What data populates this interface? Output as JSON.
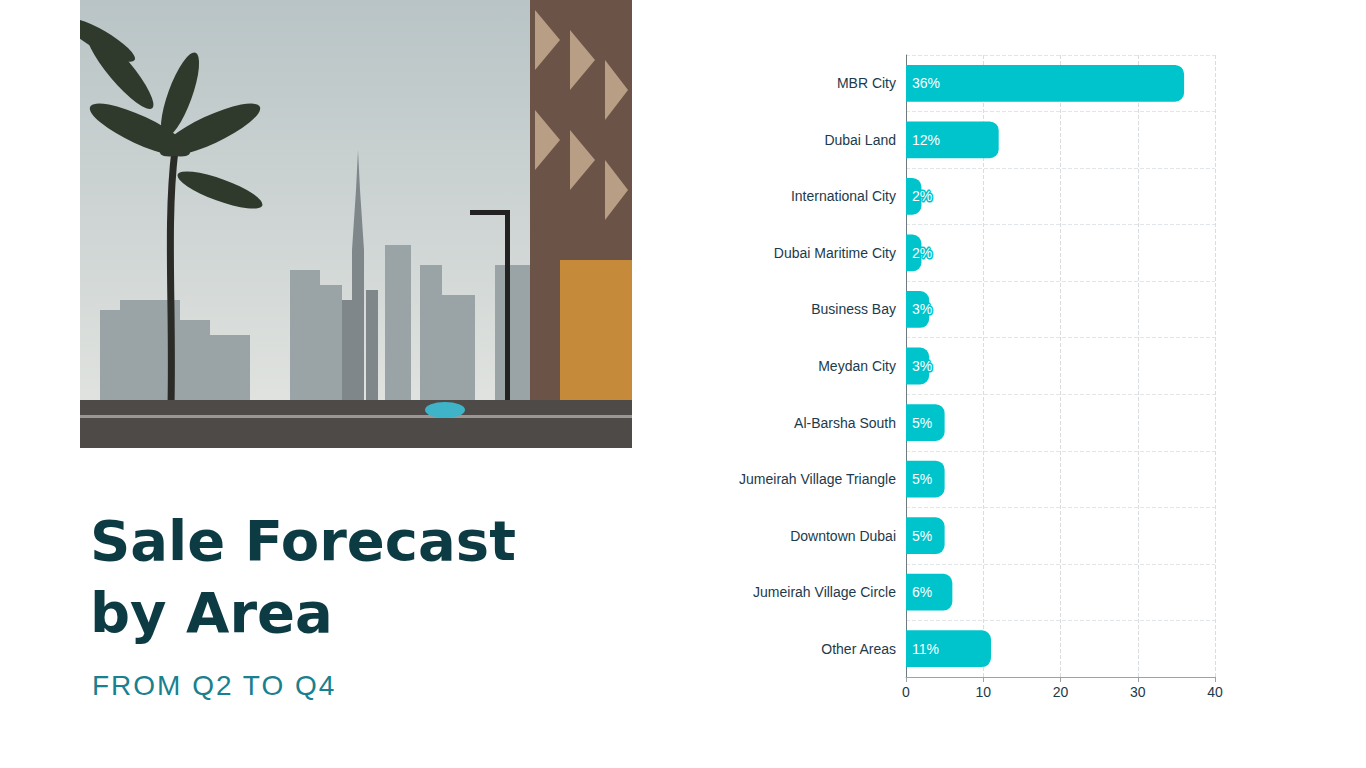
{
  "chart_data": {
    "type": "bar",
    "orientation": "horizontal",
    "title": "Sale Forecast by Area",
    "subtitle": "FROM Q2 TO Q4",
    "categories": [
      "MBR City",
      "Dubai Land",
      "International City",
      "Dubai Maritime City",
      "Business Bay",
      "Meydan City",
      "Al-Barsha South",
      "Jumeirah Village Triangle",
      "Downtown Dubai",
      "Jumeirah Village Circle",
      "Other Areas"
    ],
    "values": [
      36,
      12,
      2,
      2,
      3,
      3,
      5,
      5,
      5,
      6,
      11
    ],
    "value_labels": [
      "36%",
      "12%",
      "2%",
      "2%",
      "3%",
      "3%",
      "5%",
      "5%",
      "5%",
      "6%",
      "11%"
    ],
    "color": "#00c4cc",
    "xlim": [
      0,
      40
    ],
    "xticks": [
      0,
      10,
      20,
      30,
      40
    ],
    "grid": true,
    "data_labels": true
  }
}
